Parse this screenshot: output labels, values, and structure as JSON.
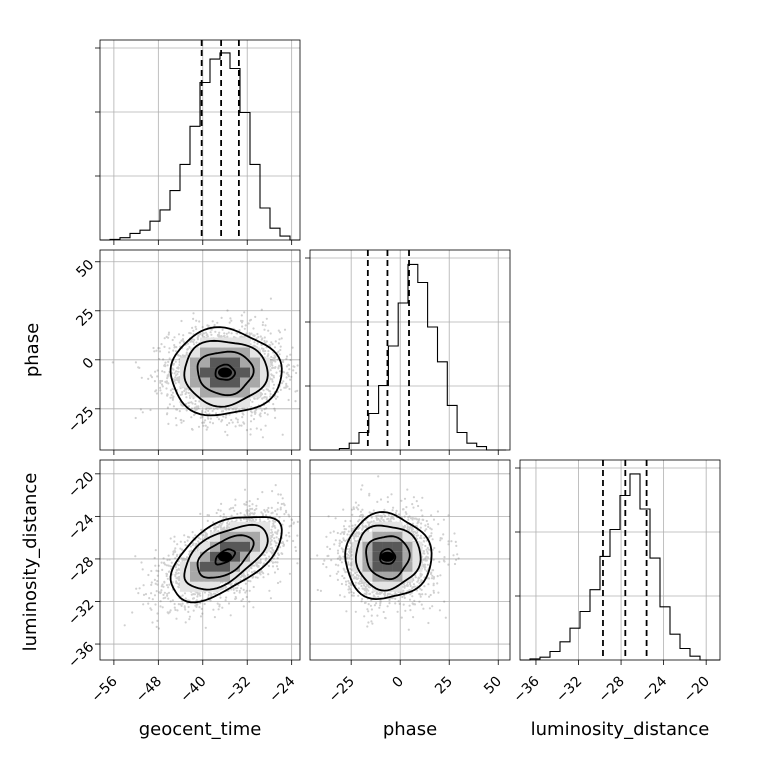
{
  "chart_data": {
    "type": "corner",
    "parameters": [
      "geocent_time",
      "phase",
      "luminosity_distance"
    ],
    "quantiles": {
      "geocent_time": [
        -40.2,
        -36.7,
        -33.5
      ],
      "phase": [
        -16.5,
        -6.5,
        4.5
      ],
      "luminosity_distance": [
        -29.7,
        -27.6,
        -25.6
      ]
    },
    "ranges": {
      "geocent_time": [
        -58.5,
        -22.5
      ],
      "phase": [
        -46,
        56
      ],
      "luminosity_distance": [
        -37.5,
        -18.7
      ]
    },
    "ticks": {
      "geocent_time": [
        -56,
        -48,
        -40,
        -32,
        -24
      ],
      "phase_x": [
        -25,
        0,
        25,
        50
      ],
      "phase_y": [
        -25,
        0,
        25,
        50
      ],
      "luminosity_distance": [
        -36,
        -32,
        -28,
        -24,
        -20
      ]
    },
    "tick_labels": {
      "geocent_time": [
        "−56",
        "−48",
        "−40",
        "−32",
        "−24"
      ],
      "phase_x": [
        "−25",
        "0",
        "25",
        "50"
      ],
      "phase_y": [
        "−25",
        "0",
        "25",
        "50"
      ],
      "luminosity_distance_x": [
        "−36",
        "−32",
        "−28",
        "−24",
        "−20"
      ],
      "luminosity_distance_y": [
        "−20",
        "−24",
        "−28",
        "−32",
        "−36"
      ]
    },
    "histograms": {
      "geocent_time": {
        "edges": [
          -58.5,
          -56.7,
          -54.9,
          -53.1,
          -51.3,
          -49.5,
          -47.7,
          -45.9,
          -44.1,
          -42.3,
          -40.5,
          -38.7,
          -36.9,
          -35.1,
          -33.3,
          -31.5,
          -29.7,
          -27.9,
          -26.1,
          -24.3,
          -22.5
        ],
        "heights": [
          0.0,
          0.003,
          0.012,
          0.035,
          0.052,
          0.1,
          0.16,
          0.263,
          0.402,
          0.605,
          0.838,
          0.962,
          0.995,
          0.912,
          0.678,
          0.402,
          0.17,
          0.063,
          0.021,
          0.0
        ]
      },
      "phase": {
        "edges": [
          -46,
          -41,
          -36,
          -31,
          -26,
          -21,
          -16,
          -11,
          -6,
          -1,
          4,
          9,
          14,
          19,
          24,
          29,
          34,
          39,
          44,
          49,
          54
        ],
        "heights": [
          0.0,
          0.0,
          0.0,
          0.008,
          0.036,
          0.093,
          0.194,
          0.343,
          0.553,
          0.782,
          0.987,
          0.891,
          0.654,
          0.469,
          0.237,
          0.093,
          0.036,
          0.018,
          0.0,
          0.0
        ]
      },
      "luminosity_distance": {
        "edges": [
          -37.5,
          -36.56,
          -35.62,
          -34.68,
          -33.74,
          -32.8,
          -31.86,
          -30.92,
          -29.98,
          -29.04,
          -28.1,
          -27.16,
          -26.22,
          -25.28,
          -24.34,
          -23.4,
          -22.46,
          -21.52,
          -20.58,
          -19.64,
          -18.7
        ],
        "heights": [
          0.0,
          0.006,
          0.015,
          0.045,
          0.097,
          0.169,
          0.258,
          0.374,
          0.551,
          0.694,
          0.875,
          0.99,
          0.803,
          0.542,
          0.283,
          0.137,
          0.061,
          0.02,
          0.0,
          0.0
        ]
      }
    },
    "pairs": [
      {
        "x": "geocent_time",
        "y": "phase",
        "center": [
          -36,
          -6.5
        ],
        "sx": 5.0,
        "sy": 11.0,
        "rho": 0.0
      },
      {
        "x": "geocent_time",
        "y": "luminosity_distance",
        "center": [
          -36,
          -27.8
        ],
        "sx": 5.0,
        "sy": 2.0,
        "rho": 0.55
      },
      {
        "x": "phase",
        "y": "luminosity_distance",
        "center": [
          -6.5,
          -27.8
        ],
        "sx": 11.0,
        "sy": 2.0,
        "rho": 0.0
      }
    ],
    "contour_levels_sigma": [
      1.0,
      1.5,
      2.0,
      0.35
    ],
    "grid": true,
    "xlabel_1": "geocent_time",
    "xlabel_2": "phase",
    "xlabel_3": "luminosity_distance",
    "ylabel_2": "phase",
    "ylabel_3": "luminosity_distance"
  },
  "colors": {
    "line": "#000000",
    "grid": "#b0b0b0",
    "scatter": "#6e6e6e",
    "fill_light": "#e4e4e4",
    "fill_mid": "#a8a8a8",
    "fill_dark": "#585858"
  }
}
